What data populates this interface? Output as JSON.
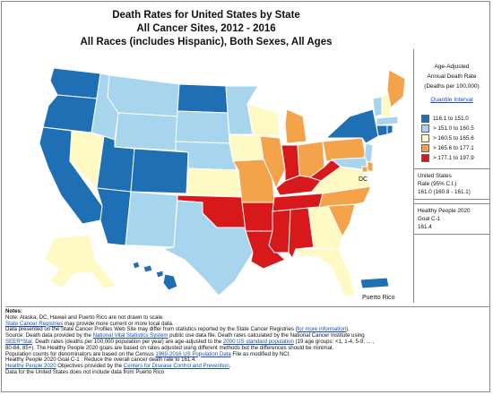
{
  "title": {
    "line1": "Death Rates for United States by State",
    "line2": "All Cancer Sites, 2012 - 2016",
    "line3": "All Races (includes Hispanic), Both Sexes, All Ages"
  },
  "legend": {
    "title_line1": "Age-Adjusted",
    "title_line2": "Annual Death Rate",
    "title_line3": "(Deaths per 100,000)",
    "link": "Quantile Interval",
    "items": [
      {
        "label": "116.1  to  151.0",
        "color": "#1f6fb5"
      },
      {
        "label": "> 151.0  to  160.5",
        "color": "#a8d5ee"
      },
      {
        "label": "> 160.5  to  165.6",
        "color": "#fff9c4"
      },
      {
        "label": "> 165.6  to  177.1",
        "color": "#f5a34a"
      },
      {
        "label": "> 177.1  to  197.9",
        "color": "#d7191c"
      }
    ],
    "us_rate": {
      "line1": "United States",
      "line2": "Rate  (95% C.I.)",
      "line3": "161.0 (160.8 - 161.1)"
    },
    "hp_goal": {
      "line1": "Healthy People 2020",
      "line2": "Goal C-1",
      "line3": "161.4"
    }
  },
  "map": {
    "label_dc": "DC",
    "label_pr": "Puerto Rico",
    "colors": {
      "q1": "#1f6fb5",
      "q2": "#a8d5ee",
      "q3": "#fff9c4",
      "q4": "#f5a34a",
      "q5": "#d7191c"
    }
  },
  "notes": {
    "title": "Notes:",
    "l1": "Note: Alaska, DC, Hawaii and Puerto Rico are not drawn to scale.",
    "l2_link": "State Cancer Registries",
    "l2_rest": " may provide more current or more local data.",
    "l3a": "Data presented on the State Cancer Profiles Web Site may differ from statistics reported by the State Cancer Registries (",
    "l3_link": "for more information",
    "l3b": ").",
    "l4a": "Source: Death data provided by the ",
    "l4_link": "National Vital Statistics System",
    "l4b": " public use data file. Death rates calculated by the National Cancer Institute using",
    "l5_link1": "SEER*Stat",
    "l5a": ". Death rates (deaths per 100,000 population per year) are age-adjusted to the ",
    "l5_link2": "2000 US standard population",
    "l5b": " (19 age groups: <1, 1-4, 5-9, ... ,",
    "l6": "80-84, 85+). The Healthy People 2020 goals are based on rates adjusted using different methods but the differences should be minimal.",
    "l7a": "Population counts for denominators are based on the Census ",
    "l7_link": "1969-2016 US Population Data",
    "l7b": " File as modified by NCI.",
    "l8": "Healthy People 2020 Goal C-1 : Reduce the overall cancer death rate to 161.4.",
    "l9_link1": "Healthy People 2020",
    "l9a": " Objectives provided by the ",
    "l9_link2": "Centers for Disease Control and Prevention",
    "l9b": ".",
    "l10": "Data for the United States does not include data from Puerto Rico"
  }
}
